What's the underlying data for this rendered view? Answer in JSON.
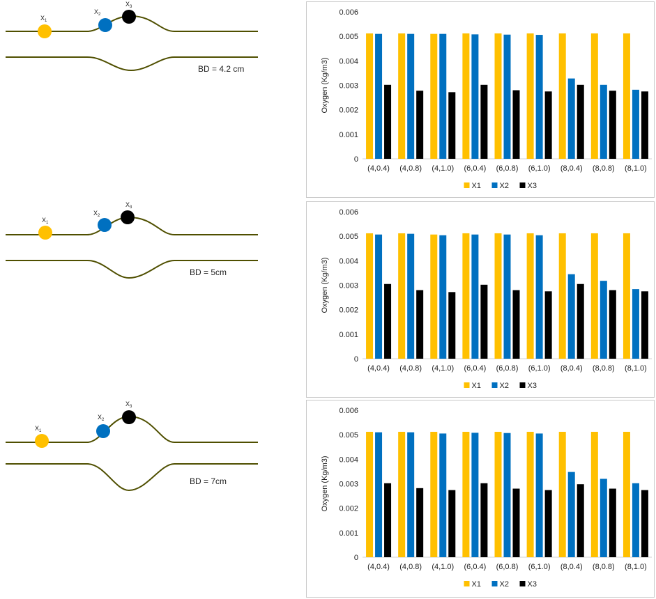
{
  "colors": {
    "X1": "#FFC000",
    "X2": "#0070C0",
    "X3": "#000000",
    "channel": "#4f4f00"
  },
  "diagrams": [
    {
      "bd_label": "BD = 4.2 cm",
      "points": [
        "X",
        "X",
        "X"
      ],
      "subs": [
        "1",
        "2",
        "3"
      ]
    },
    {
      "bd_label": "BD = 5cm",
      "points": [
        "X",
        "X",
        "X"
      ],
      "subs": [
        "1",
        "2",
        "3"
      ]
    },
    {
      "bd_label": "BD = 7cm",
      "points": [
        "X",
        "X",
        "X"
      ],
      "subs": [
        "1",
        "2",
        "3"
      ]
    }
  ],
  "chart_data": [
    {
      "type": "bar",
      "title": "",
      "xlabel": "",
      "ylabel": "Oxygen (Kg/m3)",
      "ylim": [
        0,
        0.006
      ],
      "yticks": [
        "0",
        "0.001",
        "0.002",
        "0.003",
        "0.004",
        "0.005",
        "0.006"
      ],
      "categories": [
        "(4,0.4)",
        "(4,0.8)",
        "(4,1.0)",
        "(6,0.4)",
        "(6,0.8)",
        "(6,1.0)",
        "(8,0.4)",
        "(8,0.8)",
        "(8,1.0)"
      ],
      "series": [
        {
          "name": "X1",
          "values": [
            0.00512,
            0.00512,
            0.0051,
            0.00512,
            0.00512,
            0.00512,
            0.00512,
            0.00512,
            0.00512
          ]
        },
        {
          "name": "X2",
          "values": [
            0.0051,
            0.0051,
            0.0051,
            0.00508,
            0.00507,
            0.00506,
            0.00328,
            0.00302,
            0.00282
          ]
        },
        {
          "name": "X3",
          "values": [
            0.00302,
            0.00278,
            0.00272,
            0.00302,
            0.0028,
            0.00275,
            0.00302,
            0.00278,
            0.00275
          ]
        }
      ],
      "legend": [
        "X1",
        "X2",
        "X3"
      ]
    },
    {
      "type": "bar",
      "title": "",
      "xlabel": "",
      "ylabel": "Oxygen (Kg/m3)",
      "ylim": [
        0,
        0.006
      ],
      "yticks": [
        "0",
        "0.001",
        "0.002",
        "0.003",
        "0.004",
        "0.005",
        "0.006"
      ],
      "categories": [
        "(4,0.4)",
        "(4,0.8)",
        "(4,1.0)",
        "(6,0.4)",
        "(6,0.8)",
        "(6,1.0)",
        "(8,0.4)",
        "(8,0.8)",
        "(8,1.0)"
      ],
      "series": [
        {
          "name": "X1",
          "values": [
            0.00512,
            0.00512,
            0.00507,
            0.00512,
            0.00512,
            0.00512,
            0.00512,
            0.00512,
            0.00512
          ]
        },
        {
          "name": "X2",
          "values": [
            0.00507,
            0.0051,
            0.00504,
            0.00507,
            0.00507,
            0.00504,
            0.00345,
            0.00318,
            0.00284
          ]
        },
        {
          "name": "X3",
          "values": [
            0.00305,
            0.0028,
            0.00272,
            0.00302,
            0.0028,
            0.00275,
            0.00305,
            0.0028,
            0.00275
          ]
        }
      ],
      "legend": [
        "X1",
        "X2",
        "X3"
      ]
    },
    {
      "type": "bar",
      "title": "",
      "xlabel": "",
      "ylabel": "Oxygen (Kg/m3)",
      "ylim": [
        0,
        0.006
      ],
      "yticks": [
        "0",
        "0.001",
        "0.002",
        "0.003",
        "0.004",
        "0.005",
        "0.006"
      ],
      "categories": [
        "(4,0.4)",
        "(4,0.8)",
        "(4,1.0)",
        "(6,0.4)",
        "(6,0.8)",
        "(6,1.0)",
        "(8,0.4)",
        "(8,0.8)",
        "(8,1.0)"
      ],
      "series": [
        {
          "name": "X1",
          "values": [
            0.00512,
            0.00512,
            0.00512,
            0.00512,
            0.00512,
            0.00512,
            0.00512,
            0.00512,
            0.00512
          ]
        },
        {
          "name": "X2",
          "values": [
            0.0051,
            0.0051,
            0.00505,
            0.00508,
            0.00507,
            0.00505,
            0.00348,
            0.0032,
            0.00302
          ]
        },
        {
          "name": "X3",
          "values": [
            0.00302,
            0.00282,
            0.00274,
            0.00302,
            0.0028,
            0.00274,
            0.00298,
            0.0028,
            0.00274
          ]
        }
      ],
      "legend": [
        "X1",
        "X2",
        "X3"
      ]
    }
  ]
}
